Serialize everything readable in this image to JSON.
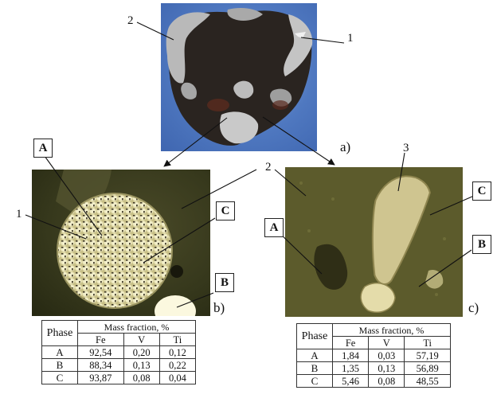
{
  "panels": {
    "a": "a)",
    "b": "b)",
    "c": "c)"
  },
  "callouts": {
    "n1_top": "1",
    "n2_top": "2",
    "n1_left": "1",
    "n2_mid": "2",
    "n3": "3"
  },
  "phase_labels_b": {
    "A": "A",
    "B": "B",
    "C": "C"
  },
  "phase_labels_c": {
    "A": "A",
    "B": "B",
    "C": "C"
  },
  "table_b": {
    "phase_header": "Phase",
    "group_header": "Mass fraction, %",
    "columns": [
      "Fe",
      "V",
      "Ti"
    ],
    "rows": [
      {
        "phase": "A",
        "values": [
          "92,54",
          "0,20",
          "0,12"
        ]
      },
      {
        "phase": "B",
        "values": [
          "88,34",
          "0,13",
          "0,22"
        ]
      },
      {
        "phase": "C",
        "values": [
          "93,87",
          "0,08",
          "0,04"
        ]
      }
    ]
  },
  "table_c": {
    "phase_header": "Phase",
    "group_header": "Mass fraction, %",
    "columns": [
      "Fe",
      "V",
      "Ti"
    ],
    "rows": [
      {
        "phase": "A",
        "values": [
          "1,84",
          "0,03",
          "57,19"
        ]
      },
      {
        "phase": "B",
        "values": [
          "1,35",
          "0,13",
          "56,89"
        ]
      },
      {
        "phase": "C",
        "values": [
          "5,46",
          "0,08",
          "48,55"
        ]
      }
    ]
  }
}
